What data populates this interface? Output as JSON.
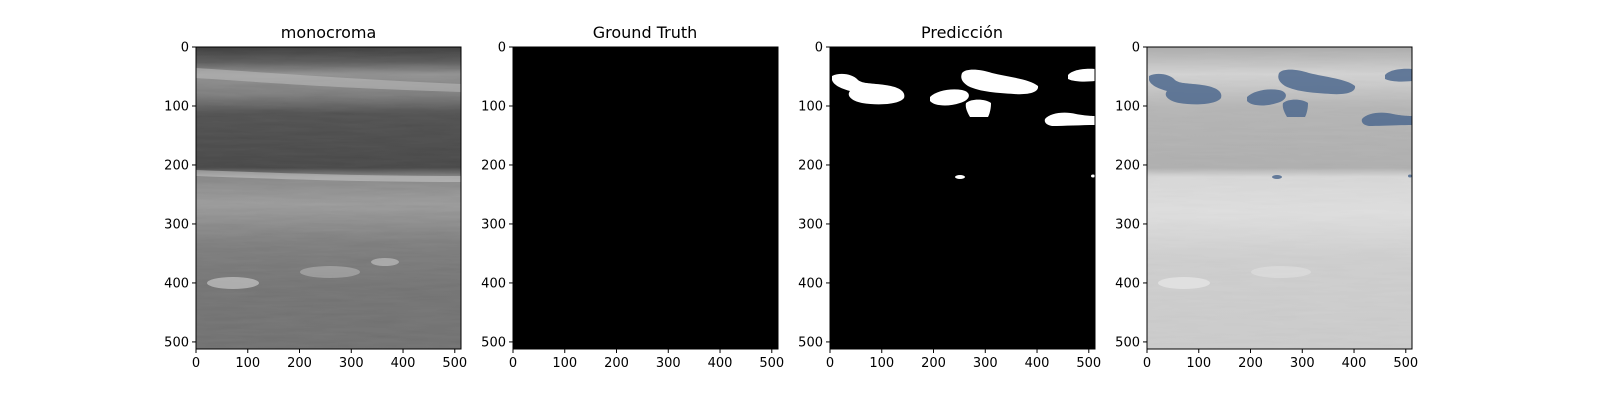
{
  "figure": {
    "panels": [
      {
        "title": "monocroma",
        "kind": "grayscale-ultrasound"
      },
      {
        "title": "Ground Truth",
        "kind": "empty-mask"
      },
      {
        "title": "Predicción",
        "kind": "prediction-mask"
      },
      {
        "title": "",
        "kind": "overlay"
      }
    ],
    "axes": {
      "x_ticks": [
        "0",
        "100",
        "200",
        "300",
        "400",
        "500"
      ],
      "y_ticks": [
        "0",
        "100",
        "200",
        "300",
        "400",
        "500"
      ],
      "x_range": [
        0,
        512
      ],
      "y_range": [
        0,
        512
      ]
    },
    "colors": {
      "mask_background": "#000000",
      "mask_foreground": "#ffffff",
      "overlay_tint": "#4f6a8f"
    }
  }
}
